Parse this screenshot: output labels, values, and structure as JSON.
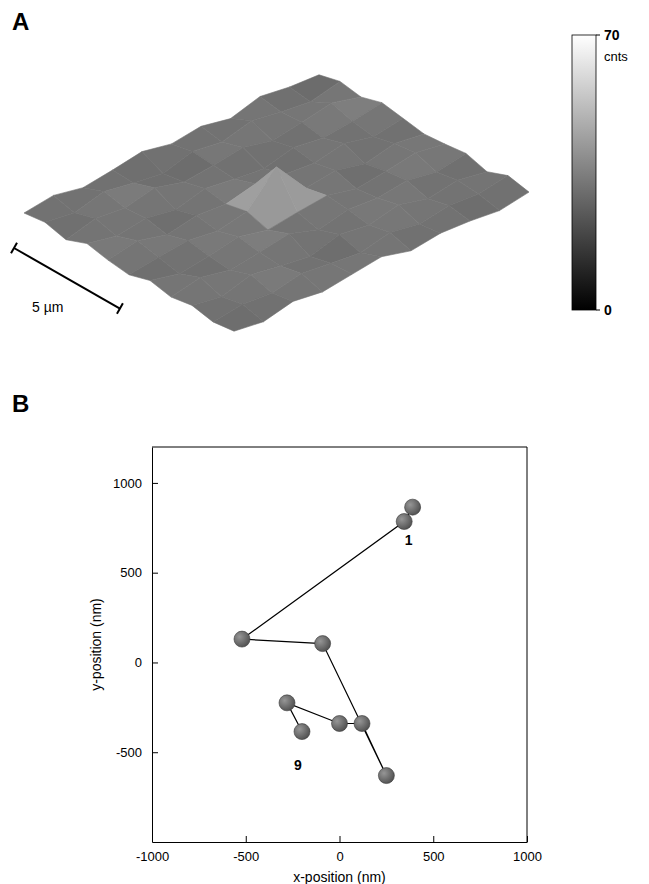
{
  "chart_data": [
    {
      "type": "surface",
      "panel": "A",
      "surface": [
        [
          30,
          34,
          27,
          31,
          36,
          29,
          33,
          26,
          35,
          30,
          28
        ],
        [
          33,
          28,
          36,
          30,
          25,
          34,
          29,
          37,
          31,
          27,
          34
        ],
        [
          27,
          35,
          31,
          38,
          29,
          32,
          36,
          28,
          33,
          39,
          30
        ],
        [
          36,
          29,
          33,
          27,
          35,
          30,
          26,
          34,
          29,
          32,
          37
        ],
        [
          31,
          37,
          28,
          34,
          31,
          38,
          33,
          30,
          36,
          28,
          33
        ],
        [
          28,
          32,
          35,
          30,
          36,
          70,
          31,
          35,
          27,
          34,
          29
        ],
        [
          35,
          27,
          31,
          37,
          29,
          33,
          36,
          28,
          32,
          37,
          31
        ],
        [
          30,
          36,
          29,
          33,
          38,
          27,
          34,
          31,
          35,
          29,
          34
        ],
        [
          34,
          28,
          37,
          31,
          26,
          35,
          30,
          37,
          28,
          33,
          27
        ],
        [
          29,
          33,
          30,
          36,
          32,
          28,
          35,
          29,
          34,
          31,
          36
        ],
        [
          32,
          27,
          34,
          29,
          33,
          37,
          28,
          32,
          30,
          26,
          31
        ]
      ],
      "colorbar": {
        "range": [
          0,
          70
        ],
        "ticks": [
          0,
          70
        ],
        "label": "cnts"
      },
      "scale_bar": "5 µm",
      "tick_labels": false
    },
    {
      "type": "line",
      "panel": "B",
      "x_label": "x-position (nm)",
      "y_label": "y-position (nm)",
      "x": [
        390,
        345,
        -520,
        -90,
        250,
        120,
        0,
        -280,
        -200
      ],
      "series": [
        {
          "values": [
            865,
            785,
            130,
            105,
            -630,
            -340,
            -340,
            -225,
            -385
          ],
          "color": "#555555",
          "marker": "circle",
          "line_style": "solid"
        }
      ],
      "xlim": [
        -1000,
        1000
      ],
      "xticks": [
        -1000,
        -500,
        0,
        500,
        1000
      ],
      "ylim": [
        -1000,
        1200
      ],
      "yticks": [
        -500,
        0,
        500,
        1000
      ],
      "annotations": [
        {
          "text": "1",
          "point": 0
        },
        {
          "text": "9",
          "point": 8
        }
      ]
    }
  ]
}
